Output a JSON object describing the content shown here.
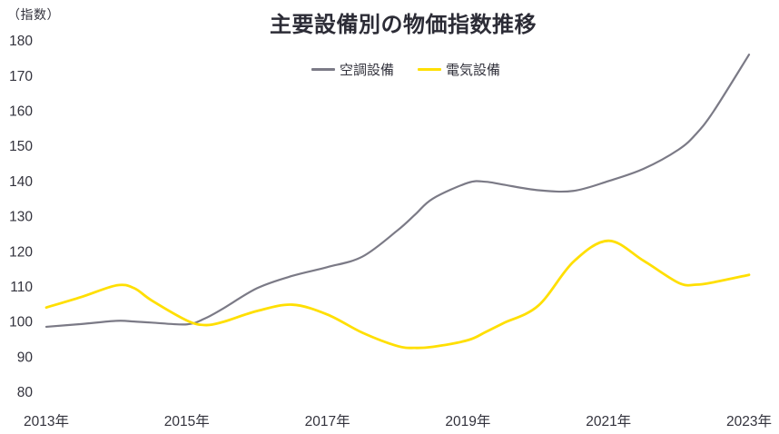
{
  "chart_data": {
    "type": "line",
    "title": "主要設備別の物価指数推移",
    "ylabel": "（指数）",
    "xlabel": "",
    "ylim": [
      80,
      180
    ],
    "ytick_step": 10,
    "xlim": [
      2013,
      2023
    ],
    "xticks": [
      2013,
      2015,
      2017,
      2019,
      2021,
      2023
    ],
    "xtick_suffix": "年",
    "grid": false,
    "axes_lines": false,
    "legend_position": "top-center",
    "background_color": "#ffffff",
    "text_color": "#33333d",
    "title_color": "#2c2c36",
    "x": [
      2013,
      2013.5,
      2014,
      2014.25,
      2014.5,
      2015,
      2015.25,
      2015.5,
      2016,
      2016.5,
      2017,
      2017.5,
      2018,
      2018.25,
      2018.5,
      2019,
      2019.25,
      2019.5,
      2020,
      2020.5,
      2021,
      2021.5,
      2022,
      2022.25,
      2022.5,
      2023
    ],
    "series": [
      {
        "name": "空調設備",
        "color": "#7B7A86",
        "values": [
          98.5,
          99.3,
          100.2,
          100.0,
          99.7,
          99.2,
          100.8,
          103.5,
          109.5,
          113.0,
          115.5,
          118.5,
          126.0,
          130.5,
          135.0,
          139.5,
          139.8,
          139.0,
          137.4,
          137.2,
          140.0,
          143.5,
          149.0,
          153.5,
          160.0,
          176.0
        ]
      },
      {
        "name": "電気設備",
        "color": "#FFDF00",
        "values": [
          104.0,
          107.0,
          110.3,
          109.5,
          106.0,
          100.3,
          99.0,
          99.8,
          103.0,
          104.8,
          102.0,
          96.8,
          93.0,
          92.5,
          92.8,
          94.7,
          97.0,
          99.5,
          104.5,
          117.0,
          123.0,
          117.3,
          111.0,
          110.5,
          111.2,
          113.3
        ]
      }
    ]
  }
}
